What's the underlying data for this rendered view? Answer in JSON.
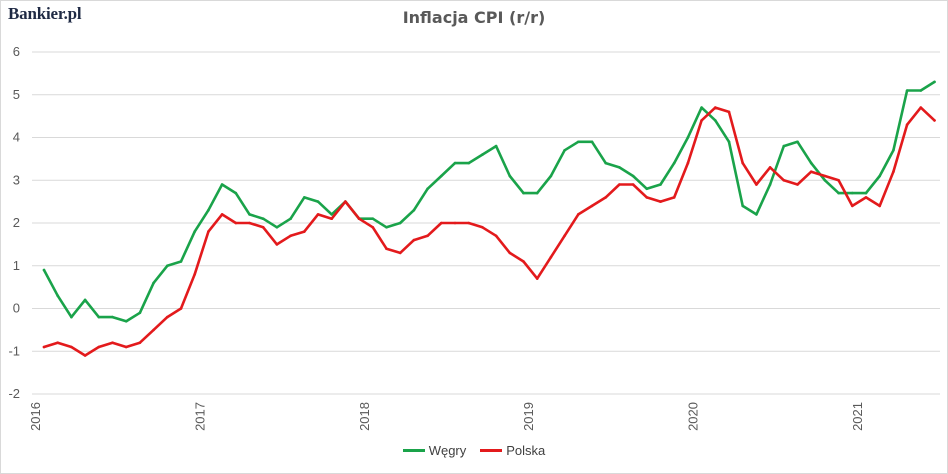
{
  "brand": {
    "logo_text": "Bankier.pl"
  },
  "chart_data": {
    "type": "line",
    "title": "Inflacja CPI (r/r)",
    "xlabel": "",
    "ylabel": "",
    "ylim": [
      -2,
      6
    ],
    "yticks": [
      "-2",
      "-1",
      "0",
      "1",
      "2",
      "3",
      "4",
      "5",
      "6"
    ],
    "xticks": [
      "2016",
      "2017",
      "2018",
      "2019",
      "2020",
      "2021"
    ],
    "x_start": "2016-01",
    "x_frequency": "monthly",
    "grid": true,
    "legend_position": "bottom",
    "series": [
      {
        "name": "Węgry",
        "color": "#1aa34a",
        "values": [
          0.9,
          0.3,
          -0.2,
          0.2,
          -0.2,
          -0.2,
          -0.3,
          -0.1,
          0.6,
          1.0,
          1.1,
          1.8,
          2.3,
          2.9,
          2.7,
          2.2,
          2.1,
          1.9,
          2.1,
          2.6,
          2.5,
          2.2,
          2.5,
          2.1,
          2.1,
          1.9,
          2.0,
          2.3,
          2.8,
          3.1,
          3.4,
          3.4,
          3.6,
          3.8,
          3.1,
          2.7,
          2.7,
          3.1,
          3.7,
          3.9,
          3.9,
          3.4,
          3.3,
          3.1,
          2.8,
          2.9,
          3.4,
          4.0,
          4.7,
          4.4,
          3.9,
          2.4,
          2.2,
          2.9,
          3.8,
          3.9,
          3.4,
          3.0,
          2.7,
          2.7,
          2.7,
          3.1,
          3.7,
          5.1,
          5.1,
          5.3
        ]
      },
      {
        "name": "Polska",
        "color": "#e31a1c",
        "values": [
          -0.9,
          -0.8,
          -0.9,
          -1.1,
          -0.9,
          -0.8,
          -0.9,
          -0.8,
          -0.5,
          -0.2,
          0.0,
          0.8,
          1.8,
          2.2,
          2.0,
          2.0,
          1.9,
          1.5,
          1.7,
          1.8,
          2.2,
          2.1,
          2.5,
          2.1,
          1.9,
          1.4,
          1.3,
          1.6,
          1.7,
          2.0,
          2.0,
          2.0,
          1.9,
          1.7,
          1.3,
          1.1,
          0.7,
          1.2,
          1.7,
          2.2,
          2.4,
          2.6,
          2.9,
          2.9,
          2.6,
          2.5,
          2.6,
          3.4,
          4.4,
          4.7,
          4.6,
          3.4,
          2.9,
          3.3,
          3.0,
          2.9,
          3.2,
          3.1,
          3.0,
          2.4,
          2.6,
          2.4,
          3.2,
          4.3,
          4.7,
          4.4
        ]
      }
    ]
  }
}
